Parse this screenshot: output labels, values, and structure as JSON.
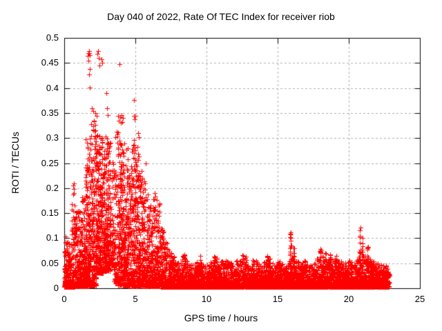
{
  "chart_data": {
    "type": "scatter",
    "title": "Day 040 of 2022, Rate Of TEC Index for receiver riob",
    "xlabel": "GPS time / hours",
    "ylabel": "ROTI / TECUs",
    "xlim": [
      0,
      25
    ],
    "ylim": [
      0,
      0.5
    ],
    "xticks": [
      0,
      5,
      10,
      15,
      20,
      25
    ],
    "xtick_labels": [
      "0",
      "5",
      "10",
      "15",
      "20",
      "25"
    ],
    "yticks": [
      0,
      0.05,
      0.1,
      0.15,
      0.2,
      0.25,
      0.3,
      0.35,
      0.4,
      0.45,
      0.5
    ],
    "ytick_labels": [
      "0",
      "0.05",
      "0.1",
      "0.15",
      "0.2",
      "0.25",
      "0.3",
      "0.35",
      "0.4",
      "0.45",
      "0.5"
    ],
    "marker": "plus",
    "marker_color": "#ff0000",
    "marker_size_px": 7,
    "grid": "dashed",
    "grid_color": "#b0b0b0",
    "axis_color": "#000000",
    "background_color": "#ffffff",
    "data_start_hour": 0.0,
    "data_end_hour": 22.85,
    "max_roti_observed": 0.474,
    "cloud_bins": [
      [
        0.0,
        0.25,
        100,
        0.003,
        0.105,
        3.0
      ],
      [
        0.25,
        0.5,
        100,
        0.003,
        0.09,
        3.0
      ],
      [
        0.5,
        0.75,
        100,
        0.003,
        0.17,
        3.2
      ],
      [
        0.75,
        1.0,
        100,
        0.004,
        0.155,
        2.8
      ],
      [
        1.0,
        1.25,
        110,
        0.004,
        0.16,
        2.5
      ],
      [
        1.25,
        1.5,
        110,
        0.004,
        0.185,
        2.4
      ],
      [
        1.5,
        1.75,
        120,
        0.004,
        0.3,
        2.1
      ],
      [
        1.75,
        2.0,
        130,
        0.005,
        0.33,
        1.9
      ],
      [
        2.0,
        2.25,
        130,
        0.005,
        0.335,
        1.85
      ],
      [
        2.25,
        2.5,
        130,
        0.03,
        0.315,
        1.85
      ],
      [
        2.5,
        2.75,
        130,
        0.03,
        0.3,
        1.85
      ],
      [
        2.75,
        3.0,
        120,
        0.035,
        0.31,
        1.9
      ],
      [
        3.0,
        3.25,
        120,
        0.035,
        0.3,
        1.95
      ],
      [
        3.25,
        3.5,
        70,
        0.045,
        0.26,
        2.1
      ],
      [
        3.5,
        3.75,
        70,
        0.01,
        0.245,
        2.2
      ],
      [
        3.75,
        4.0,
        120,
        0.005,
        0.315,
        1.9
      ],
      [
        4.0,
        4.25,
        120,
        0.005,
        0.3,
        1.95
      ],
      [
        4.25,
        4.5,
        115,
        0.005,
        0.285,
        2.0
      ],
      [
        4.5,
        4.75,
        110,
        0.004,
        0.26,
        2.1
      ],
      [
        4.75,
        5.0,
        110,
        0.004,
        0.3,
        2.1
      ],
      [
        5.0,
        5.25,
        105,
        0.004,
        0.285,
        2.2
      ],
      [
        5.25,
        5.5,
        105,
        0.004,
        0.245,
        2.3
      ],
      [
        5.5,
        5.75,
        100,
        0.004,
        0.215,
        2.4
      ],
      [
        5.75,
        6.0,
        100,
        0.004,
        0.19,
        2.5
      ],
      [
        6.0,
        6.25,
        95,
        0.004,
        0.165,
        2.5
      ],
      [
        6.25,
        6.5,
        95,
        0.004,
        0.185,
        2.6
      ],
      [
        6.5,
        6.75,
        95,
        0.004,
        0.17,
        2.6
      ],
      [
        6.75,
        7.0,
        90,
        0.003,
        0.125,
        2.8
      ],
      [
        7.0,
        7.25,
        85,
        0.003,
        0.095,
        3.0
      ],
      [
        7.25,
        7.5,
        85,
        0.003,
        0.08,
        3.2
      ],
      [
        7.5,
        7.75,
        80,
        0.003,
        0.07,
        3.2
      ],
      [
        7.75,
        8.0,
        80,
        0.003,
        0.055,
        3.2
      ],
      [
        8.0,
        8.25,
        80,
        0.003,
        0.05,
        3.2
      ],
      [
        8.25,
        8.5,
        80,
        0.003,
        0.065,
        3.2
      ],
      [
        8.5,
        8.75,
        80,
        0.003,
        0.055,
        3.2
      ],
      [
        8.75,
        9.0,
        80,
        0.003,
        0.048,
        3.2
      ],
      [
        9.0,
        9.25,
        80,
        0.003,
        0.05,
        3.2
      ],
      [
        9.25,
        9.5,
        80,
        0.003,
        0.055,
        3.2
      ],
      [
        9.5,
        9.75,
        80,
        0.003,
        0.06,
        3.2
      ],
      [
        9.75,
        10.0,
        80,
        0.003,
        0.05,
        3.2
      ],
      [
        10.0,
        10.25,
        80,
        0.003,
        0.048,
        3.2
      ],
      [
        10.25,
        10.5,
        80,
        0.003,
        0.055,
        3.2
      ],
      [
        10.5,
        10.75,
        80,
        0.003,
        0.062,
        3.2
      ],
      [
        10.75,
        11.0,
        80,
        0.003,
        0.05,
        3.2
      ],
      [
        11.0,
        11.25,
        80,
        0.003,
        0.055,
        3.2
      ],
      [
        11.25,
        11.5,
        80,
        0.003,
        0.06,
        3.2
      ],
      [
        11.5,
        11.75,
        80,
        0.003,
        0.052,
        3.2
      ],
      [
        11.75,
        12.0,
        80,
        0.003,
        0.048,
        3.2
      ],
      [
        12.0,
        12.25,
        80,
        0.003,
        0.055,
        3.2
      ],
      [
        12.25,
        12.5,
        80,
        0.003,
        0.06,
        3.2
      ],
      [
        12.5,
        12.75,
        80,
        0.003,
        0.065,
        3.2
      ],
      [
        12.75,
        13.0,
        80,
        0.003,
        0.055,
        3.2
      ],
      [
        13.0,
        13.25,
        80,
        0.003,
        0.05,
        3.2
      ],
      [
        13.25,
        13.5,
        80,
        0.003,
        0.058,
        3.2
      ],
      [
        13.5,
        13.75,
        80,
        0.003,
        0.052,
        3.2
      ],
      [
        13.75,
        14.0,
        80,
        0.003,
        0.048,
        3.2
      ],
      [
        14.0,
        14.25,
        80,
        0.003,
        0.055,
        3.2
      ],
      [
        14.25,
        14.5,
        80,
        0.003,
        0.06,
        3.2
      ],
      [
        14.5,
        14.75,
        80,
        0.003,
        0.052,
        3.2
      ],
      [
        14.75,
        15.0,
        80,
        0.003,
        0.048,
        3.2
      ],
      [
        15.0,
        15.25,
        80,
        0.003,
        0.055,
        3.2
      ],
      [
        15.25,
        15.5,
        80,
        0.003,
        0.05,
        3.2
      ],
      [
        15.5,
        15.75,
        80,
        0.003,
        0.048,
        3.2
      ],
      [
        15.75,
        16.0,
        80,
        0.003,
        0.06,
        3.2
      ],
      [
        16.0,
        16.25,
        80,
        0.003,
        0.065,
        3.2
      ],
      [
        16.25,
        16.5,
        80,
        0.003,
        0.055,
        3.2
      ],
      [
        16.5,
        16.75,
        80,
        0.003,
        0.05,
        3.2
      ],
      [
        16.75,
        17.0,
        80,
        0.003,
        0.055,
        3.2
      ],
      [
        17.0,
        17.25,
        80,
        0.003,
        0.05,
        3.2
      ],
      [
        17.25,
        17.5,
        80,
        0.003,
        0.048,
        3.2
      ],
      [
        17.5,
        17.75,
        80,
        0.003,
        0.052,
        3.2
      ],
      [
        17.75,
        18.0,
        80,
        0.003,
        0.06,
        3.2
      ],
      [
        18.0,
        18.25,
        80,
        0.003,
        0.065,
        3.2
      ],
      [
        18.25,
        18.5,
        80,
        0.003,
        0.055,
        3.2
      ],
      [
        18.5,
        18.75,
        80,
        0.003,
        0.06,
        3.2
      ],
      [
        18.75,
        19.0,
        80,
        0.003,
        0.055,
        3.2
      ],
      [
        19.0,
        19.25,
        80,
        0.003,
        0.06,
        3.2
      ],
      [
        19.25,
        19.5,
        80,
        0.003,
        0.055,
        3.2
      ],
      [
        19.5,
        19.75,
        80,
        0.003,
        0.05,
        3.2
      ],
      [
        19.75,
        20.0,
        80,
        0.003,
        0.052,
        3.2
      ],
      [
        20.0,
        20.25,
        80,
        0.003,
        0.055,
        3.2
      ],
      [
        20.25,
        20.5,
        80,
        0.003,
        0.05,
        3.2
      ],
      [
        20.5,
        20.75,
        80,
        0.003,
        0.06,
        3.2
      ],
      [
        20.75,
        21.0,
        80,
        0.003,
        0.07,
        3.2
      ],
      [
        21.0,
        21.25,
        80,
        0.003,
        0.065,
        3.2
      ],
      [
        21.25,
        21.5,
        80,
        0.003,
        0.06,
        3.2
      ],
      [
        21.5,
        21.75,
        80,
        0.003,
        0.055,
        3.2
      ],
      [
        21.75,
        22.0,
        80,
        0.003,
        0.05,
        3.2
      ],
      [
        22.0,
        22.25,
        80,
        0.003,
        0.052,
        3.2
      ],
      [
        22.25,
        22.5,
        80,
        0.003,
        0.048,
        3.2
      ],
      [
        22.5,
        22.75,
        80,
        0.003,
        0.045,
        3.2
      ],
      [
        22.75,
        22.85,
        30,
        0.003,
        0.04,
        3.2
      ]
    ],
    "spikes": [
      [
        0.63,
        0.21,
        6
      ],
      [
        1.55,
        0.215,
        8
      ],
      [
        8.45,
        0.068,
        8
      ],
      [
        9.6,
        0.065,
        6
      ],
      [
        10.6,
        0.063,
        6
      ],
      [
        12.55,
        0.066,
        8
      ],
      [
        12.75,
        0.06,
        6
      ],
      [
        14.3,
        0.065,
        6
      ],
      [
        15.9,
        0.112,
        16
      ],
      [
        16.15,
        0.08,
        8
      ],
      [
        18.0,
        0.078,
        10
      ],
      [
        18.35,
        0.07,
        8
      ],
      [
        18.7,
        0.068,
        8
      ],
      [
        19.1,
        0.065,
        8
      ],
      [
        20.8,
        0.121,
        14
      ],
      [
        20.95,
        0.1,
        8
      ],
      [
        21.35,
        0.082,
        10
      ]
    ],
    "outliers": [
      [
        1.67,
        0.464
      ],
      [
        1.7,
        0.47
      ],
      [
        1.73,
        0.474
      ],
      [
        1.76,
        0.47
      ],
      [
        1.71,
        0.454
      ],
      [
        1.8,
        0.466
      ],
      [
        1.79,
        0.438
      ],
      [
        1.77,
        0.427
      ],
      [
        1.81,
        0.401
      ],
      [
        2.33,
        0.468
      ],
      [
        2.38,
        0.474
      ],
      [
        2.42,
        0.46
      ],
      [
        2.46,
        0.445
      ],
      [
        2.6,
        0.457
      ],
      [
        2.65,
        0.451
      ],
      [
        3.9,
        0.447
      ],
      [
        2.95,
        0.39
      ],
      [
        3.02,
        0.36
      ],
      [
        3.08,
        0.346
      ],
      [
        1.95,
        0.36
      ],
      [
        2.06,
        0.354
      ],
      [
        2.18,
        0.35
      ],
      [
        2.28,
        0.344
      ],
      [
        3.6,
        0.302
      ],
      [
        3.67,
        0.312
      ],
      [
        3.78,
        0.345
      ],
      [
        3.84,
        0.335
      ],
      [
        3.91,
        0.341
      ],
      [
        3.97,
        0.33
      ],
      [
        4.03,
        0.346
      ],
      [
        4.09,
        0.332
      ],
      [
        4.15,
        0.34
      ],
      [
        4.88,
        0.376
      ],
      [
        4.92,
        0.345
      ],
      [
        4.97,
        0.338
      ],
      [
        5.02,
        0.344
      ],
      [
        5.18,
        0.31
      ],
      [
        5.24,
        0.302
      ],
      [
        0.62,
        0.205
      ],
      [
        0.66,
        0.198
      ],
      [
        0.7,
        0.19
      ],
      [
        5.75,
        0.25
      ],
      [
        6.35,
        0.19
      ],
      [
        6.42,
        0.183
      ]
    ]
  }
}
